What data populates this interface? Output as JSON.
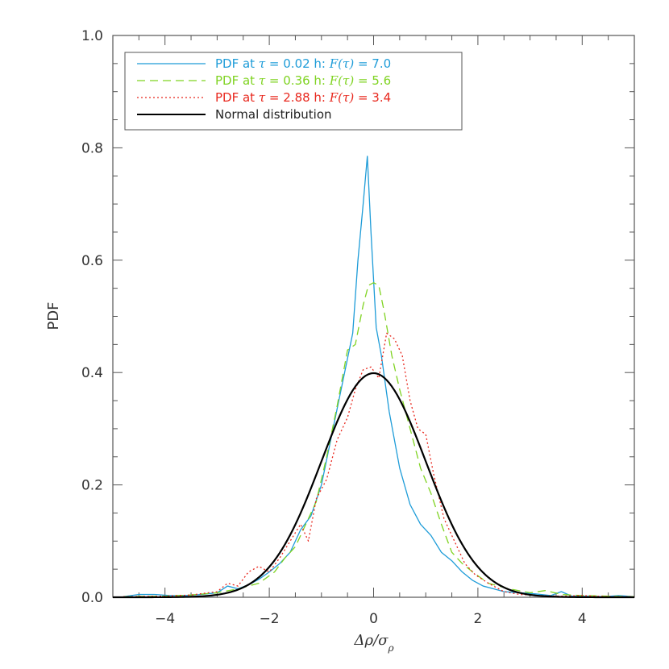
{
  "chart_data": {
    "type": "line",
    "xlabel": "Δρ/σ",
    "xlabel_sub": "ρ",
    "ylabel": "PDF",
    "xlim": [
      -5,
      5
    ],
    "ylim": [
      0,
      1.0
    ],
    "x_ticks": [
      -4,
      -2,
      0,
      2,
      4
    ],
    "x_tick_labels": [
      "−4",
      "−2",
      "0",
      "2",
      "4"
    ],
    "y_ticks": [
      0.0,
      0.2,
      0.4,
      0.6,
      0.8,
      1.0
    ],
    "y_tick_labels": [
      "0.0",
      "0.2",
      "0.4",
      "0.6",
      "0.8",
      "1.0"
    ],
    "grid": false,
    "legend_position": "top-left",
    "series": [
      {
        "name": "PDF at τ = 0.02 h: F(τ) = 7.0",
        "legend_prefix": "PDF at ",
        "legend_tau": "τ",
        "legend_mid": " = 0.02 h: ",
        "legend_F": "F(τ)",
        "legend_suffix": " = 7.0",
        "color": "#1e9cd8",
        "style": "solid",
        "x": [
          -4.8,
          -4.5,
          -4.2,
          -3.9,
          -3.6,
          -3.3,
          -3.0,
          -2.8,
          -2.6,
          -2.4,
          -2.2,
          -2.0,
          -1.8,
          -1.6,
          -1.4,
          -1.2,
          -1.0,
          -0.8,
          -0.6,
          -0.4,
          -0.3,
          -0.2,
          -0.12,
          -0.05,
          0.05,
          0.15,
          0.3,
          0.5,
          0.7,
          0.9,
          1.1,
          1.3,
          1.5,
          1.7,
          1.9,
          2.1,
          2.3,
          2.5,
          2.8,
          3.1,
          3.4,
          3.6,
          3.8,
          4.1,
          4.4,
          4.7,
          5.0
        ],
        "y": [
          0.001,
          0.005,
          0.005,
          0.003,
          0.003,
          0.005,
          0.008,
          0.02,
          0.015,
          0.022,
          0.032,
          0.045,
          0.06,
          0.08,
          0.12,
          0.145,
          0.2,
          0.29,
          0.38,
          0.47,
          0.6,
          0.7,
          0.785,
          0.65,
          0.48,
          0.43,
          0.33,
          0.23,
          0.165,
          0.13,
          0.11,
          0.08,
          0.065,
          0.045,
          0.03,
          0.02,
          0.015,
          0.01,
          0.008,
          0.006,
          0.003,
          0.01,
          0.002,
          0.002,
          0.001,
          0.003,
          0.001
        ]
      },
      {
        "name": "PDF at τ = 0.36 h: F(τ) = 5.6",
        "legend_prefix": "PDF at ",
        "legend_tau": "τ",
        "legend_mid": " = 0.36 h: ",
        "legend_F": "F(τ)",
        "legend_suffix": " = 5.6",
        "color": "#7fd321",
        "style": "dashed",
        "x": [
          -4.8,
          -4.0,
          -3.5,
          -3.0,
          -2.6,
          -2.2,
          -1.9,
          -1.7,
          -1.5,
          -1.3,
          -1.1,
          -0.9,
          -0.7,
          -0.5,
          -0.35,
          -0.2,
          -0.1,
          0.0,
          0.1,
          0.2,
          0.35,
          0.5,
          0.7,
          0.9,
          1.1,
          1.3,
          1.5,
          1.7,
          1.9,
          2.2,
          2.6,
          3.0,
          3.3,
          3.6,
          4.0,
          4.5,
          5.0
        ],
        "y": [
          0.001,
          0.002,
          0.004,
          0.008,
          0.015,
          0.025,
          0.045,
          0.07,
          0.09,
          0.13,
          0.17,
          0.25,
          0.34,
          0.44,
          0.45,
          0.52,
          0.555,
          0.56,
          0.555,
          0.51,
          0.43,
          0.37,
          0.3,
          0.23,
          0.185,
          0.13,
          0.08,
          0.06,
          0.045,
          0.025,
          0.015,
          0.008,
          0.012,
          0.005,
          0.003,
          0.002,
          0.001
        ]
      },
      {
        "name": "PDF at τ = 2.88 h: F(τ) = 3.4",
        "legend_prefix": "PDF at ",
        "legend_tau": "τ",
        "legend_mid": " = 2.88 h: ",
        "legend_F": "F(τ)",
        "legend_suffix": " = 3.4",
        "color": "#e8281e",
        "style": "dotted",
        "x": [
          -4.8,
          -4.0,
          -3.5,
          -3.0,
          -2.8,
          -2.6,
          -2.4,
          -2.2,
          -2.0,
          -1.8,
          -1.6,
          -1.4,
          -1.25,
          -1.1,
          -0.9,
          -0.7,
          -0.5,
          -0.35,
          -0.2,
          -0.05,
          0.1,
          0.25,
          0.4,
          0.55,
          0.7,
          0.85,
          1.0,
          1.15,
          1.35,
          1.55,
          1.75,
          1.95,
          2.2,
          2.5,
          2.8,
          3.2,
          3.6,
          4.0,
          4.5,
          5.0
        ],
        "y": [
          0.001,
          0.002,
          0.004,
          0.01,
          0.025,
          0.02,
          0.045,
          0.055,
          0.045,
          0.07,
          0.1,
          0.13,
          0.1,
          0.175,
          0.21,
          0.28,
          0.32,
          0.37,
          0.405,
          0.41,
          0.39,
          0.47,
          0.46,
          0.43,
          0.35,
          0.3,
          0.29,
          0.22,
          0.14,
          0.1,
          0.06,
          0.04,
          0.025,
          0.01,
          0.005,
          0.003,
          0.002,
          0.003,
          0.001,
          0.001
        ]
      },
      {
        "name": "Normal distribution",
        "color": "#000000",
        "style": "solid-thick",
        "function": "normal",
        "mean": 0,
        "sigma": 1
      }
    ]
  }
}
